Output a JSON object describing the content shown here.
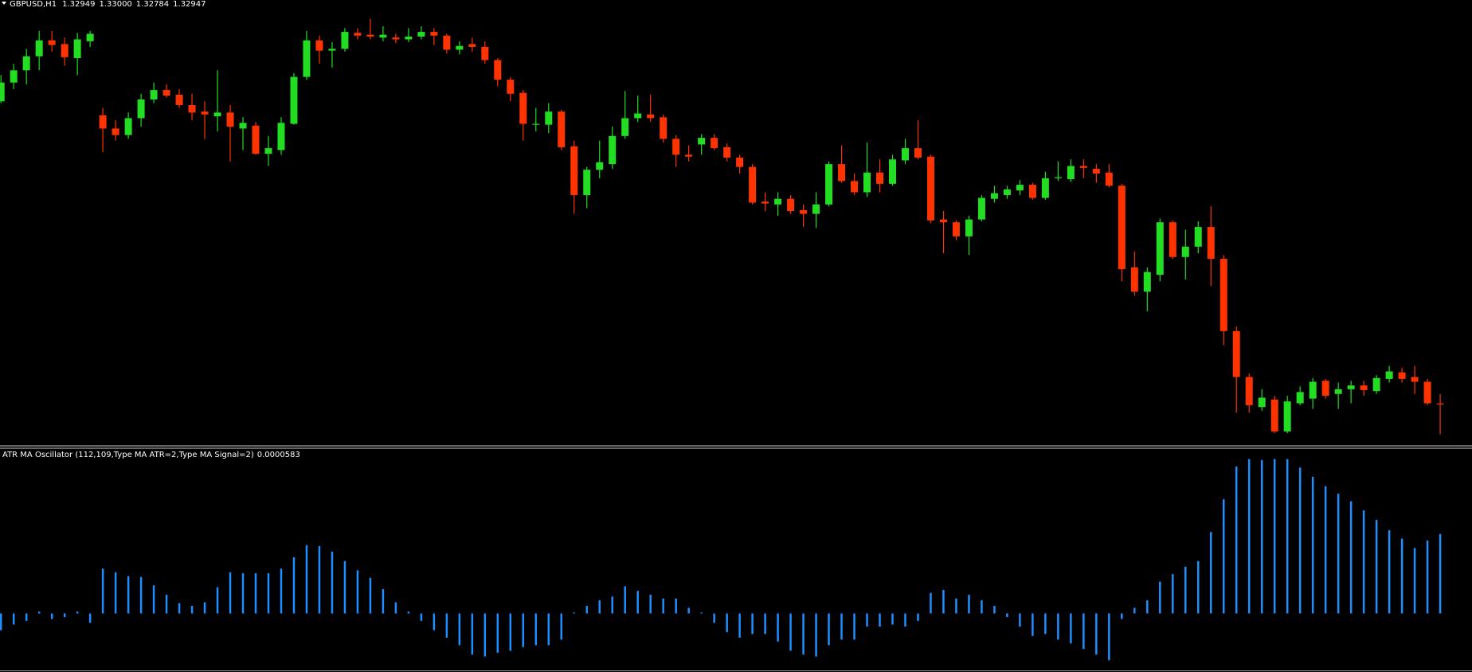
{
  "header": {
    "symbol": "GBPUSD,H1",
    "ohlc": [
      "1.32949",
      "1.33000",
      "1.32784",
      "1.32947"
    ]
  },
  "chart_data": [
    {
      "type": "candlestick",
      "up_color": "#22dd22",
      "down_color": "#ff3300",
      "ylim": [
        1.3274,
        1.351
      ],
      "open": [
        1.3456,
        1.3466,
        1.34725,
        1.348,
        1.34885,
        1.34865,
        1.3479,
        1.3488,
        1.34485,
        1.34415,
        1.3438,
        1.3447,
        1.3457,
        1.3462,
        1.34595,
        1.3454,
        1.34505,
        1.3448,
        1.345,
        1.34415,
        1.3443,
        1.3428,
        1.343,
        1.3444,
        1.3469,
        1.34885,
        1.3483,
        1.3484,
        1.34925,
        1.34915,
        1.349,
        1.349,
        1.3489,
        1.34905,
        1.3493,
        1.3491,
        1.34835,
        1.34865,
        1.3485,
        1.3478,
        1.34675,
        1.34605,
        1.34435,
        1.34435,
        1.34505,
        1.3432,
        1.3406,
        1.34195,
        1.34225,
        1.34375,
        1.3447,
        1.3449,
        1.34475,
        1.3436,
        1.34275,
        1.3433,
        1.34365,
        1.34315,
        1.3426,
        1.3421,
        1.34025,
        1.3401,
        1.3404,
        1.3398,
        1.3396,
        1.3401,
        1.34225,
        1.34135,
        1.34075,
        1.3418,
        1.3412,
        1.34245,
        1.3431,
        1.34265,
        1.3393,
        1.33915,
        1.3384,
        1.3393,
        1.3404,
        1.3406,
        1.34085,
        1.34115,
        1.34045,
        1.3415,
        1.34145,
        1.34215,
        1.342,
        1.3418,
        1.3411,
        1.33675,
        1.33545,
        1.33635,
        1.33915,
        1.3373,
        1.33785,
        1.3389,
        1.3372,
        1.33335,
        1.3309,
        1.3293,
        1.3297,
        1.328,
        1.3295,
        1.32975,
        1.3307,
        1.33,
        1.33025,
        1.33045,
        1.33015,
        1.3308,
        1.33115,
        1.3309,
        1.33065,
        1.32949
      ],
      "high": [
        1.347,
        1.3476,
        1.3484,
        1.34935,
        1.34935,
        1.349,
        1.34925,
        1.34935,
        1.34525,
        1.3446,
        1.345,
        1.346,
        1.3466,
        1.3465,
        1.34625,
        1.346,
        1.3456,
        1.34725,
        1.3454,
        1.34475,
        1.3445,
        1.34375,
        1.34475,
        1.3471,
        1.34935,
        1.3491,
        1.34875,
        1.3495,
        1.3495,
        1.35,
        1.3496,
        1.3492,
        1.3495,
        1.3496,
        1.3495,
        1.3492,
        1.3488,
        1.349,
        1.3488,
        1.3479,
        1.3469,
        1.3462,
        1.34525,
        1.3455,
        1.34515,
        1.3435,
        1.3421,
        1.3435,
        1.34425,
        1.34615,
        1.3459,
        1.34595,
        1.3449,
        1.3438,
        1.34325,
        1.34385,
        1.34385,
        1.34335,
        1.34275,
        1.34225,
        1.34075,
        1.34075,
        1.3406,
        1.3401,
        1.34075,
        1.3424,
        1.34325,
        1.34175,
        1.3434,
        1.3425,
        1.34275,
        1.3436,
        1.3446,
        1.34275,
        1.33975,
        1.33925,
        1.3395,
        1.3406,
        1.3411,
        1.3411,
        1.3414,
        1.34125,
        1.34185,
        1.3424,
        1.3425,
        1.3425,
        1.34225,
        1.34225,
        1.3412,
        1.3376,
        1.33675,
        1.33935,
        1.33925,
        1.33875,
        1.3392,
        1.34,
        1.3374,
        1.3336,
        1.3311,
        1.33025,
        1.3299,
        1.3299,
        1.3304,
        1.33085,
        1.3308,
        1.3306,
        1.3307,
        1.3307,
        1.331,
        1.3315,
        1.3314,
        1.3315,
        1.3308,
        1.33
      ],
      "low": [
        1.3455,
        1.34625,
        1.3465,
        1.34725,
        1.34825,
        1.3475,
        1.347,
        1.3485,
        1.3429,
        1.3435,
        1.3436,
        1.34425,
        1.3455,
        1.3458,
        1.34525,
        1.3446,
        1.3436,
        1.344,
        1.3424,
        1.343,
        1.34275,
        1.34215,
        1.34275,
        1.34435,
        1.34675,
        1.3476,
        1.3474,
        1.34825,
        1.3489,
        1.3489,
        1.3488,
        1.3487,
        1.34875,
        1.3489,
        1.3486,
        1.34815,
        1.3481,
        1.34825,
        1.3476,
        1.3464,
        1.3456,
        1.3435,
        1.344,
        1.3439,
        1.343,
        1.3396,
        1.3399,
        1.3415,
        1.342,
        1.3436,
        1.3445,
        1.3445,
        1.3434,
        1.3421,
        1.3424,
        1.34275,
        1.343,
        1.3424,
        1.34175,
        1.3401,
        1.33975,
        1.3395,
        1.3396,
        1.3389,
        1.33885,
        1.34,
        1.34125,
        1.3406,
        1.3405,
        1.34075,
        1.3411,
        1.34225,
        1.3425,
        1.3391,
        1.3375,
        1.3382,
        1.3374,
        1.3392,
        1.3402,
        1.3404,
        1.3406,
        1.34035,
        1.34035,
        1.34135,
        1.3413,
        1.3415,
        1.34125,
        1.341,
        1.336,
        1.33525,
        1.3344,
        1.336,
        1.3372,
        1.3361,
        1.3375,
        1.33575,
        1.3326,
        1.329,
        1.329,
        1.3291,
        1.3279,
        1.3279,
        1.3294,
        1.3292,
        1.32975,
        1.3292,
        1.3295,
        1.3299,
        1.33,
        1.3306,
        1.3306,
        1.33,
        1.3294,
        1.32784
      ],
      "close": [
        1.3466,
        1.34725,
        1.348,
        1.34885,
        1.3486,
        1.34795,
        1.3489,
        1.3492,
        1.34415,
        1.3438,
        1.3447,
        1.3457,
        1.3462,
        1.3459,
        1.3454,
        1.345,
        1.3449,
        1.345,
        1.34425,
        1.34445,
        1.3428,
        1.3431,
        1.34445,
        1.3469,
        1.34885,
        1.3483,
        1.3484,
        1.3493,
        1.3491,
        1.34905,
        1.34915,
        1.3489,
        1.34905,
        1.3493,
        1.3491,
        1.34835,
        1.34855,
        1.3485,
        1.3478,
        1.34675,
        1.346,
        1.3444,
        1.3444,
        1.34505,
        1.34315,
        1.3406,
        1.34195,
        1.34235,
        1.34375,
        1.3447,
        1.34495,
        1.3447,
        1.3436,
        1.34275,
        1.34265,
        1.34365,
        1.3431,
        1.3426,
        1.3421,
        1.3402,
        1.34015,
        1.3404,
        1.33975,
        1.3396,
        1.3401,
        1.34225,
        1.34135,
        1.34075,
        1.3418,
        1.3412,
        1.3425,
        1.3431,
        1.3426,
        1.33925,
        1.33915,
        1.3384,
        1.3393,
        1.34045,
        1.3407,
        1.3409,
        1.34115,
        1.34045,
        1.3415,
        1.34155,
        1.34215,
        1.34205,
        1.34175,
        1.3411,
        1.33665,
        1.33545,
        1.3365,
        1.33915,
        1.3373,
        1.33785,
        1.3389,
        1.3372,
        1.33335,
        1.3309,
        1.3294,
        1.3298,
        1.328,
        1.3296,
        1.3301,
        1.33065,
        1.3299,
        1.33025,
        1.33045,
        1.3302,
        1.33085,
        1.3312,
        1.3308,
        1.33065,
        1.3295,
        1.32947
      ]
    },
    {
      "type": "bar",
      "title": "ATR MA Oscillator (112,109,Type MA ATR=2,Type MA Signal=2)",
      "current_label": "0.0000583",
      "color": "#1e8fff",
      "ylim": [
        -4.12e-05,
        0.0001194
      ],
      "values": [
        -1.23e-05,
        -8.2e-06,
        -5.5e-06,
        1.4e-06,
        -4.1e-06,
        -2.7e-06,
        1.4e-06,
        -6.9e-06,
        3.29e-05,
        3.02e-05,
        2.74e-05,
        2.68e-05,
        2.06e-05,
        1.37e-05,
        7.5e-06,
        5.5e-06,
        8.2e-06,
        1.92e-05,
        3.02e-05,
        2.95e-05,
        2.95e-05,
        2.95e-05,
        3.29e-05,
        4.12e-05,
        5.01e-05,
        4.94e-05,
        4.53e-05,
        3.84e-05,
        3.16e-05,
        2.61e-05,
        1.78e-05,
        8.2e-06,
        1.4e-06,
        -5.5e-06,
        -1.23e-05,
        -1.78e-05,
        -2.33e-05,
        -3.02e-05,
        -3.16e-05,
        -2.88e-05,
        -2.74e-05,
        -2.47e-05,
        -2.33e-05,
        -2.33e-05,
        -1.92e-05,
        7e-07,
        5.5e-06,
        9.6e-06,
        1.23e-05,
        1.99e-05,
        1.65e-05,
        1.37e-05,
        1.1e-05,
        1.1e-05,
        4.1e-06,
        7e-07,
        -6.9e-06,
        -1.37e-05,
        -1.78e-05,
        -1.51e-05,
        -1.51e-05,
        -2.06e-05,
        -2.74e-05,
        -3.02e-05,
        -3.16e-05,
        -2.33e-05,
        -1.92e-05,
        -1.92e-05,
        -9.6e-06,
        -9.6e-06,
        -8.2e-06,
        -9.6e-06,
        -5.5e-06,
        1.51e-05,
        1.72e-05,
        1.1e-05,
        1.37e-05,
        9.6e-06,
        5.5e-06,
        -2.7e-06,
        -9.6e-06,
        -1.65e-05,
        -1.51e-05,
        -1.92e-05,
        -2.2e-05,
        -2.61e-05,
        -3.02e-05,
        -3.43e-05,
        -4.1e-06,
        4.1e-06,
        9.6e-06,
        2.33e-05,
        2.88e-05,
        3.43e-05,
        3.84e-05,
        5.97e-05,
        8.37e-05,
        0.0001077,
        0.0001132,
        0.0001125,
        0.0001132,
        0.0001132,
        0.000107,
        0.0001002,
        9.33e-05,
        8.78e-05,
        8.23e-05,
        7.55e-05,
        6.86e-05,
        6.11e-05,
        5.49e-05,
        4.8e-05,
        5.35e-05,
        5.83e-05
      ]
    }
  ]
}
